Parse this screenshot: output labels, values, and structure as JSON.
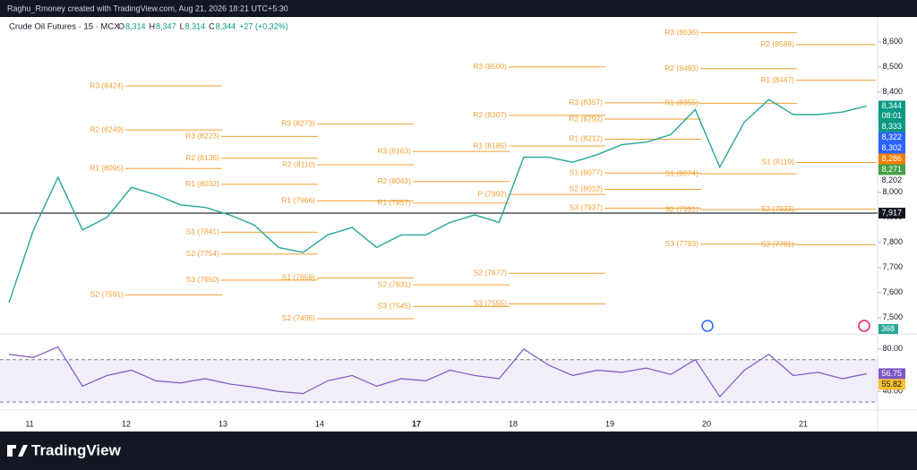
{
  "header": {
    "author_line": "Raghu_Rmoney created with TradingView.com, Aug 21, 2026 18:21 UTC+5:30",
    "symbol": "Crude Oil Futures · 15 · MCX",
    "ohlc": [
      {
        "k": "O",
        "v": "8,314"
      },
      {
        "k": "H",
        "v": "8,347"
      },
      {
        "k": "L",
        "v": "8,314"
      },
      {
        "k": "C",
        "v": "8,344"
      }
    ],
    "change": "+27 (+0.32%)",
    "logo": "TradingView"
  },
  "chart_data": {
    "type": "line",
    "color": "#26a69a",
    "values": [
      7560,
      7850,
      8060,
      7850,
      7900,
      8020,
      7990,
      7950,
      7940,
      7910,
      7870,
      7780,
      7760,
      7830,
      7860,
      7780,
      7830,
      7830,
      7880,
      7910,
      7880,
      8140,
      8140,
      8120,
      8150,
      8190,
      8200,
      8230,
      8330,
      8100,
      8280,
      8370,
      8310,
      8310,
      8320,
      8344
    ],
    "time_labels": [
      "11",
      "12",
      "13",
      "14",
      "17",
      "18",
      "19",
      "20",
      "21"
    ],
    "ylim": [
      7446,
      8642
    ],
    "yticks": [
      {
        "value": 7500,
        "label": "7,500"
      },
      {
        "value": 7600,
        "label": "7,600"
      },
      {
        "value": 7700,
        "label": "7,700"
      },
      {
        "value": 7800,
        "label": "7,800"
      },
      {
        "value": 7900,
        "label": "7,900"
      },
      {
        "value": 8000,
        "label": "8,000"
      },
      {
        "value": 8100,
        "label": "8,100"
      },
      {
        "value": 8200,
        "label": "8,200"
      },
      {
        "value": 8300,
        "label": "8,300"
      },
      {
        "value": 8400,
        "label": "8,400"
      },
      {
        "value": 8500,
        "label": "8,500"
      },
      {
        "value": 8600,
        "label": "8,600"
      }
    ],
    "pivot_color": "#f0a030",
    "pivots": [
      [
        {
          "label": "R3 (8424)",
          "value": 8424
        },
        {
          "label": "R2 (8249)",
          "value": 8249
        },
        {
          "label": "R1 (8095)",
          "value": 8095
        },
        {
          "label": "S2 (7591)",
          "value": 7591
        }
      ],
      [
        {
          "label": "R3 (8223)",
          "value": 8223
        },
        {
          "label": "R2 (8136)",
          "value": 8136
        },
        {
          "label": "R1 (8032)",
          "value": 8032
        },
        {
          "label": "S1 (7841)",
          "value": 7841
        },
        {
          "label": "S2 (7754)",
          "value": 7754
        },
        {
          "label": "S3 (7650)",
          "value": 7650
        }
      ],
      [
        {
          "label": "R3 (8273)",
          "value": 8273
        },
        {
          "label": "R2 (8110)",
          "value": 8110
        },
        {
          "label": "R1 (7966)",
          "value": 7966
        },
        {
          "label": "S1 (7659)",
          "value": 7659
        },
        {
          "label": "S2 (7496)",
          "value": 7496
        }
      ],
      [
        {
          "label": "R3 (8163)",
          "value": 8163
        },
        {
          "label": "R2 (8043)",
          "value": 8043
        },
        {
          "label": "R1 (7957)",
          "value": 7957
        },
        {
          "label": "S2 (7631)",
          "value": 7631
        },
        {
          "label": "S3 (7545)",
          "value": 7545
        }
      ],
      [
        {
          "label": "R3 (8500)",
          "value": 8500
        },
        {
          "label": "R2 (8307)",
          "value": 8307
        },
        {
          "label": "R1 (8185)",
          "value": 8185
        },
        {
          "label": "P (7992)",
          "value": 7992
        },
        {
          "label": "S2 (7677)",
          "value": 7677
        },
        {
          "label": "S3 (7555)",
          "value": 7555
        }
      ],
      [
        {
          "label": "R3 (8357)",
          "value": 8357
        },
        {
          "label": "R2 (8292)",
          "value": 8292
        },
        {
          "label": "R1 (8212)",
          "value": 8212
        },
        {
          "label": "S1 (8077)",
          "value": 8077
        },
        {
          "label": "S2 (8012)",
          "value": 8012
        },
        {
          "label": "S3 (7937)",
          "value": 7937
        }
      ],
      [
        {
          "label": "R3 (8636)",
          "value": 8636
        },
        {
          "label": "R2 (8493)",
          "value": 8493
        },
        {
          "label": "R1 (8355)",
          "value": 8355
        },
        {
          "label": "S1 (8074)",
          "value": 8074
        },
        {
          "label": "S2 (7931)",
          "value": 7931
        },
        {
          "label": "S3 (7793)",
          "value": 7793
        }
      ],
      [
        {
          "label": "R2 (8589)",
          "value": 8589
        },
        {
          "label": "R1 (8447)",
          "value": 8447
        },
        {
          "label": "S1 (8119)",
          "value": 8119
        },
        {
          "label": "S2 (7933)",
          "value": 7933
        },
        {
          "label": "S3 (7791)",
          "value": 7791
        }
      ]
    ],
    "last_price": {
      "label": "7,917",
      "value": 7917,
      "color": "#131722"
    },
    "price_tags": [
      {
        "label": "8,344",
        "value": 8344,
        "color": "#089981",
        "countdown": "08:01"
      },
      {
        "label": "8,333",
        "value": 8333,
        "color": "#089981"
      },
      {
        "label": "8,322",
        "value": 8322,
        "color": "#2962ff"
      },
      {
        "label": "8,302",
        "value": 8302,
        "color": "#2962ff"
      },
      {
        "label": "8,286",
        "value": 8286,
        "color": "#f57c00"
      },
      {
        "label": "8,271",
        "value": 8271,
        "color": "#43a047"
      }
    ],
    "plain_tag": {
      "label": "8,202",
      "value": 8202
    },
    "volume_tag": {
      "label": "368",
      "color": "#26a69a"
    },
    "rsi": {
      "color": "#7e57c2",
      "ylim": [
        25,
        90
      ],
      "yticks": [
        {
          "value": 80,
          "label": "80.00"
        },
        {
          "value": 40,
          "label": "40.00"
        }
      ],
      "bands": [
        30,
        70
      ],
      "values": [
        75,
        72,
        82,
        45,
        55,
        60,
        50,
        48,
        52,
        47,
        44,
        40,
        38,
        50,
        55,
        45,
        52,
        50,
        60,
        55,
        52,
        80,
        65,
        55,
        60,
        58,
        62,
        56,
        70,
        35,
        60,
        75,
        55,
        58,
        52,
        56.75
      ],
      "tags": [
        {
          "label": "56.75",
          "value": 56.75,
          "color": "#7e57c2"
        },
        {
          "label": "55.82",
          "value": 55.82,
          "color": "#fbc02d"
        }
      ]
    }
  }
}
